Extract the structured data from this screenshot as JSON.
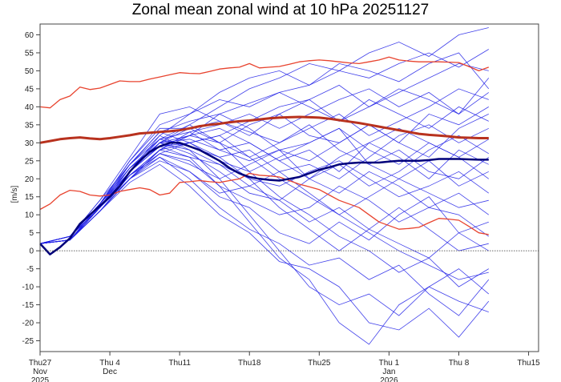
{
  "chart_data": {
    "type": "line",
    "title": "Zonal mean zonal wind at 10 hPa 20251127",
    "ylabel": "[m/s]",
    "xlabel": "",
    "ylim": [
      -28,
      63
    ],
    "xlim": [
      "2025-11-27",
      "2026-01-16"
    ],
    "grid": false,
    "legend": "none",
    "y_ticks": [
      -25,
      -20,
      -15,
      -10,
      -5,
      0,
      5,
      10,
      15,
      20,
      25,
      30,
      35,
      40,
      45,
      50,
      55,
      60
    ],
    "x_ticks": [
      {
        "date": "2025-11-27",
        "lines": [
          "Thu27",
          "Nov",
          "2025"
        ]
      },
      {
        "date": "2025-12-04",
        "lines": [
          "Thu 4",
          "Dec",
          ""
        ]
      },
      {
        "date": "2025-12-11",
        "lines": [
          "Thu11",
          "",
          ""
        ]
      },
      {
        "date": "2025-12-18",
        "lines": [
          "Thu18",
          "",
          ""
        ]
      },
      {
        "date": "2025-12-25",
        "lines": [
          "Thu25",
          "",
          ""
        ]
      },
      {
        "date": "2026-01-01",
        "lines": [
          "Thu 1",
          "Jan",
          "2026"
        ]
      },
      {
        "date": "2026-01-08",
        "lines": [
          "Thu 8",
          "",
          ""
        ]
      },
      {
        "date": "2026-01-15",
        "lines": [
          "Thu15",
          "",
          ""
        ]
      }
    ],
    "reference_line": {
      "y": 0,
      "style": "dotted",
      "color": "#000000"
    },
    "colors": {
      "members": "#1f1fe6",
      "ensemble_mean": "#00007a",
      "climatology_mean": "#b8321e",
      "climatology_extremes": "#e8432e"
    },
    "daily_dates_start": "2025-11-27",
    "series": [
      {
        "role": "climatology-max",
        "values": [
          40,
          39.7,
          42,
          43,
          45.5,
          44.8,
          45.2,
          46.2,
          47.2,
          47,
          47,
          47.7,
          48.3,
          48.9,
          49.5,
          49.3,
          49.2,
          49.8,
          50.5,
          50.8,
          51,
          52,
          50.8,
          51,
          51.2,
          51.8,
          52.5,
          52.8,
          53,
          52.8,
          52.5,
          52.2,
          52,
          52.5,
          53,
          53.8,
          53,
          52.7,
          52.5,
          52.5,
          52.5,
          52.4,
          52.3,
          51.2,
          50,
          51
        ]
      },
      {
        "role": "climatology-mean",
        "values": [
          30,
          30.5,
          31,
          31.3,
          31.5,
          31.2,
          31,
          31.3,
          31.7,
          32.1,
          32.6,
          32.8,
          33,
          33.2,
          33.5,
          34,
          34.6,
          35,
          35.3,
          35.7,
          36,
          36.2,
          36.5,
          36.8,
          37,
          37.1,
          37.2,
          37.1,
          37,
          36.7,
          36.3,
          35.9,
          35.5,
          35,
          34.5,
          34,
          33.5,
          33,
          32.5,
          32.2,
          32,
          31.8,
          31.5,
          31.4,
          31.3,
          31.3
        ]
      },
      {
        "role": "climatology-min",
        "values": [
          11.5,
          13,
          15.5,
          16.8,
          16.5,
          15.5,
          15.2,
          15.5,
          16.5,
          17,
          17.5,
          17,
          15.5,
          16,
          19,
          19.2,
          19.5,
          19.2,
          19,
          19.5,
          20,
          21.5,
          21,
          20.8,
          20.5,
          19.5,
          18.5,
          17.8,
          17,
          15.5,
          14,
          13,
          12,
          10,
          8,
          7,
          6,
          6.2,
          6.5,
          7.8,
          9,
          8.8,
          8.5,
          6.8,
          5,
          4.5
        ]
      },
      {
        "role": "ensemble-mean",
        "values": [
          2,
          -1,
          1,
          3.5,
          7.5,
          10,
          12.5,
          15,
          18,
          22,
          25,
          27.5,
          29,
          30,
          30,
          29,
          28,
          26.5,
          25,
          23,
          21.5,
          20.5,
          20,
          19.7,
          19.5,
          20,
          20.5,
          21.5,
          22.5,
          23.2,
          24,
          24.3,
          24.5,
          24.5,
          24.5,
          24.8,
          25,
          25,
          25,
          25.2,
          25.5,
          25.5,
          25.5,
          25.4,
          25.3,
          25.3
        ]
      }
    ],
    "members_dates": [
      "2025-11-27",
      "2025-11-30",
      "2025-12-03",
      "2025-12-06",
      "2025-12-09",
      "2025-12-12",
      "2025-12-15",
      "2025-12-18",
      "2025-12-21",
      "2025-12-24",
      "2025-12-27",
      "2025-12-30",
      "2026-01-02",
      "2026-01-05",
      "2026-01-08",
      "2026-01-11"
    ],
    "members": [
      [
        2,
        3,
        12,
        22,
        30,
        35,
        40,
        45,
        48,
        52,
        50,
        55,
        58,
        54,
        60,
        62
      ],
      [
        2,
        4,
        13,
        25,
        35,
        38,
        42,
        40,
        44,
        46,
        50,
        48,
        52,
        55,
        51,
        56
      ],
      [
        2,
        3,
        11,
        20,
        28,
        32,
        30,
        26,
        20,
        15,
        10,
        5,
        0,
        -4,
        -8,
        -6
      ],
      [
        2,
        4,
        12,
        24,
        32,
        28,
        20,
        10,
        0,
        -10,
        -15,
        -12,
        -18,
        -10,
        -14,
        -17
      ],
      [
        2,
        3,
        12,
        22,
        30,
        34,
        36,
        32,
        38,
        42,
        36,
        40,
        45,
        42,
        38,
        44
      ],
      [
        2,
        3,
        11,
        21,
        27,
        25,
        18,
        8,
        -2,
        -8,
        -20,
        -26,
        -15,
        -10,
        -5,
        -12
      ],
      [
        2,
        4,
        13,
        23,
        31,
        33,
        28,
        30,
        25,
        28,
        22,
        30,
        26,
        20,
        28,
        24
      ],
      [
        2,
        3,
        12,
        20,
        25,
        22,
        15,
        12,
        5,
        2,
        8,
        3,
        10,
        15,
        5,
        8
      ],
      [
        2,
        4,
        14,
        26,
        38,
        40,
        36,
        33,
        30,
        34,
        38,
        32,
        36,
        40,
        45,
        42
      ],
      [
        2,
        3,
        12,
        22,
        29,
        30,
        26,
        20,
        18,
        22,
        25,
        20,
        15,
        18,
        22,
        16
      ],
      [
        2,
        4,
        13,
        24,
        33,
        36,
        38,
        41,
        44,
        40,
        36,
        42,
        38,
        34,
        40,
        36
      ],
      [
        2,
        3,
        11,
        19,
        24,
        18,
        10,
        5,
        -3,
        -5,
        -10,
        -20,
        -22,
        -16,
        -24,
        -14
      ],
      [
        2,
        3,
        12,
        21,
        28,
        30,
        25,
        22,
        26,
        30,
        34,
        28,
        24,
        30,
        26,
        31
      ],
      [
        2,
        4,
        12,
        23,
        30,
        27,
        22,
        16,
        14,
        8,
        12,
        6,
        2,
        -2,
        5,
        0
      ],
      [
        2,
        3,
        13,
        22,
        32,
        38,
        44,
        48,
        50,
        46,
        52,
        50,
        47,
        52,
        55,
        45
      ],
      [
        2,
        3,
        12,
        21,
        27,
        24,
        20,
        24,
        28,
        20,
        16,
        22,
        18,
        12,
        16,
        10
      ],
      [
        2,
        4,
        13,
        25,
        34,
        34,
        30,
        35,
        38,
        32,
        30,
        35,
        30,
        26,
        34,
        38
      ],
      [
        2,
        3,
        11,
        20,
        26,
        20,
        12,
        6,
        2,
        -4,
        -2,
        -8,
        -4,
        -12,
        -18,
        -8
      ],
      [
        2,
        3,
        12,
        22,
        30,
        32,
        34,
        30,
        25,
        20,
        24,
        18,
        22,
        28,
        32,
        27
      ],
      [
        2,
        4,
        14,
        24,
        31,
        29,
        26,
        28,
        22,
        24,
        20,
        26,
        32,
        35,
        30,
        34
      ],
      [
        2,
        3,
        12,
        22,
        29,
        26,
        18,
        14,
        10,
        12,
        18,
        14,
        8,
        12,
        10,
        4
      ],
      [
        2,
        3,
        12,
        21,
        28,
        33,
        35,
        38,
        34,
        38,
        42,
        45,
        40,
        44,
        38,
        48
      ],
      [
        2,
        4,
        13,
        23,
        30,
        28,
        24,
        18,
        22,
        16,
        10,
        15,
        20,
        25,
        18,
        22
      ],
      [
        2,
        3,
        11,
        20,
        27,
        30,
        32,
        26,
        30,
        35,
        28,
        24,
        28,
        22,
        20,
        26
      ],
      [
        2,
        4,
        12,
        22,
        31,
        35,
        30,
        22,
        15,
        10,
        4,
        0,
        -6,
        -2,
        -10,
        -5
      ],
      [
        2,
        3,
        13,
        24,
        33,
        30,
        32,
        36,
        40,
        42,
        46,
        40,
        44,
        48,
        52,
        50
      ],
      [
        2,
        3,
        12,
        21,
        26,
        22,
        16,
        18,
        14,
        20,
        26,
        30,
        34,
        30,
        26,
        20
      ],
      [
        2,
        4,
        12,
        22,
        30,
        31,
        28,
        25,
        28,
        25,
        30,
        35,
        30,
        38,
        35,
        40
      ],
      [
        2,
        3,
        11,
        20,
        28,
        26,
        24,
        20,
        12,
        6,
        0,
        6,
        12,
        6,
        0,
        2
      ],
      [
        2,
        3,
        12,
        23,
        29,
        32,
        38,
        34,
        28,
        30,
        34,
        24,
        20,
        16,
        12,
        14
      ]
    ]
  }
}
